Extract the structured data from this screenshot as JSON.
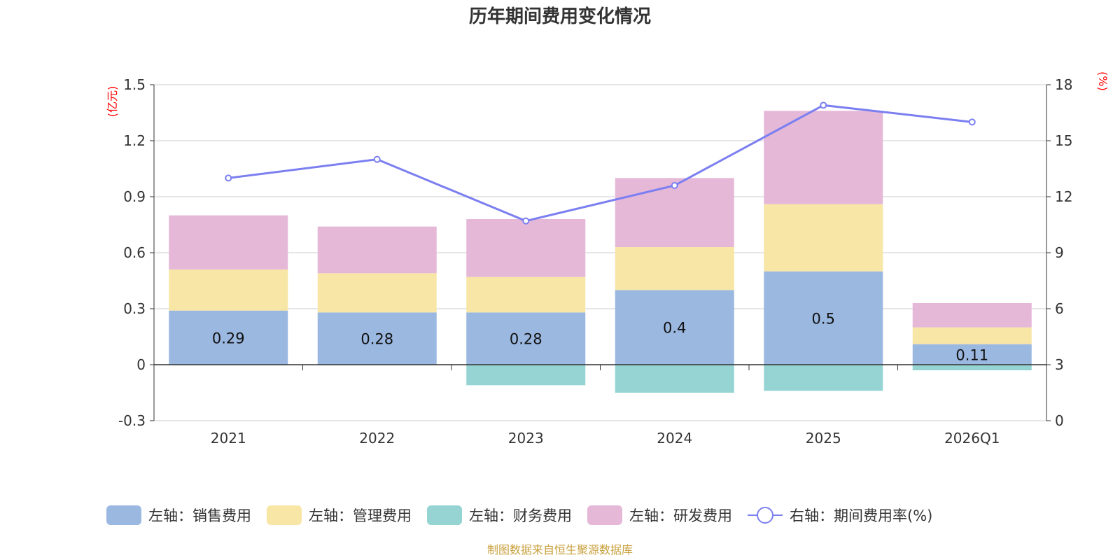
{
  "chart_data": {
    "type": "bar",
    "title": "历年期间费用变化情况",
    "categories": [
      "2021",
      "2022",
      "2023",
      "2024",
      "2025",
      "2026Q1"
    ],
    "series": [
      {
        "name": "左轴：销售费用",
        "axis": "left",
        "color": "#9bb8e1",
        "values": [
          0.29,
          0.28,
          0.28,
          0.4,
          0.5,
          0.11
        ],
        "labels": [
          "0.29",
          "0.28",
          "0.28",
          "0.4",
          "0.5",
          "0.11"
        ]
      },
      {
        "name": "左轴：管理费用",
        "axis": "left",
        "color": "#f7e6a6",
        "values": [
          0.22,
          0.21,
          0.19,
          0.23,
          0.36,
          0.09
        ]
      },
      {
        "name": "左轴：财务费用",
        "axis": "left",
        "color": "#96d4d4",
        "values": [
          0.0,
          0.0,
          -0.11,
          -0.15,
          -0.14,
          -0.03
        ]
      },
      {
        "name": "左轴：研发费用",
        "axis": "left",
        "color": "#e6b8d8",
        "values": [
          0.29,
          0.25,
          0.31,
          0.37,
          0.5,
          0.13
        ]
      },
      {
        "name": "右轴：期间费用率(%)",
        "axis": "right",
        "type": "line",
        "color": "#7b7ff0",
        "values": [
          13.0,
          14.0,
          10.7,
          12.6,
          16.9,
          16.0
        ]
      }
    ],
    "left_axis": {
      "unit": "(亿元)",
      "ylim": [
        -0.3,
        1.5
      ],
      "ticks": [
        "-0.3",
        "0",
        "0.3",
        "0.6",
        "0.9",
        "1.2",
        "1.5"
      ]
    },
    "right_axis": {
      "unit": "(%)",
      "ylim": [
        0,
        18
      ],
      "ticks": [
        "0",
        "3",
        "6",
        "9",
        "12",
        "15",
        "18"
      ]
    },
    "grid": true,
    "legend_position": "bottom",
    "source": "制图数据来自恒生聚源数据库"
  }
}
